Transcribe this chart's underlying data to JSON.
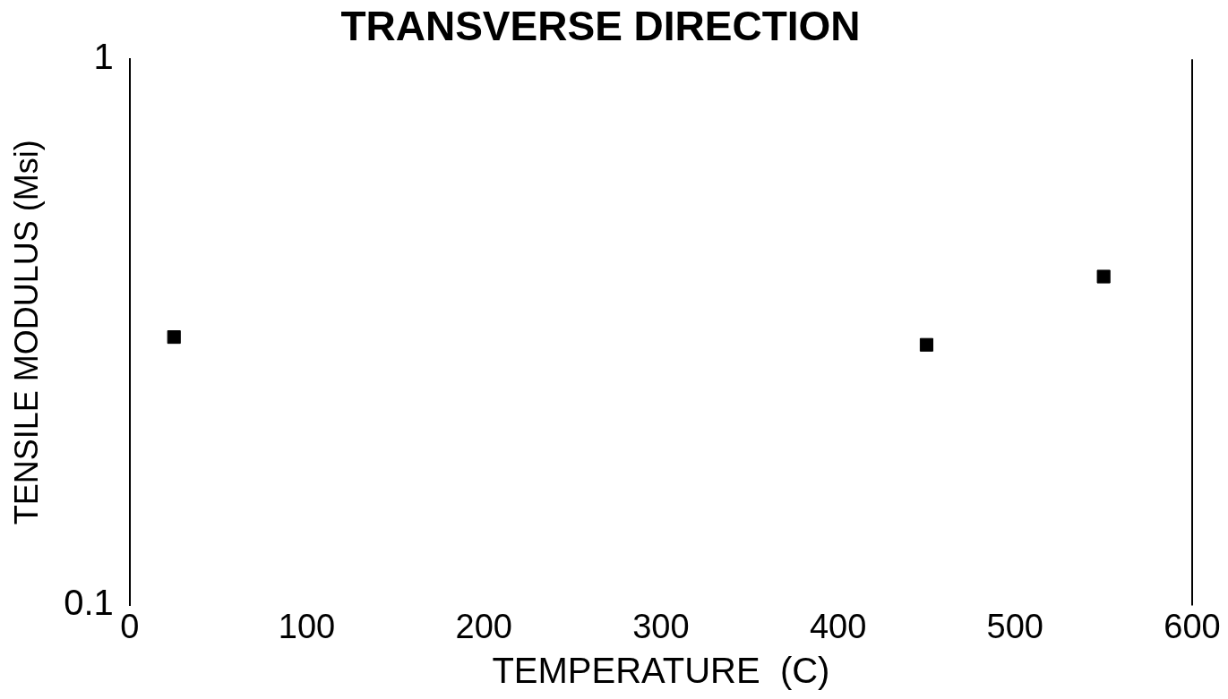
{
  "chart_data": {
    "type": "scatter",
    "title": "TRANSVERSE DIRECTION",
    "xlabel": "TEMPERATURE  (C)",
    "ylabel": "TENSILE MODULUS (Msi)",
    "x": [
      25,
      450,
      550
    ],
    "values": [
      0.31,
      0.3,
      0.4
    ],
    "color": "#000000",
    "marker": "square",
    "log": "y",
    "grid": false,
    "xlim": [
      0,
      600
    ],
    "xticks": [
      0,
      100,
      200,
      300,
      400,
      500,
      600
    ],
    "ylim": [
      0.1,
      1
    ],
    "yticks": [
      0.1,
      1
    ]
  }
}
